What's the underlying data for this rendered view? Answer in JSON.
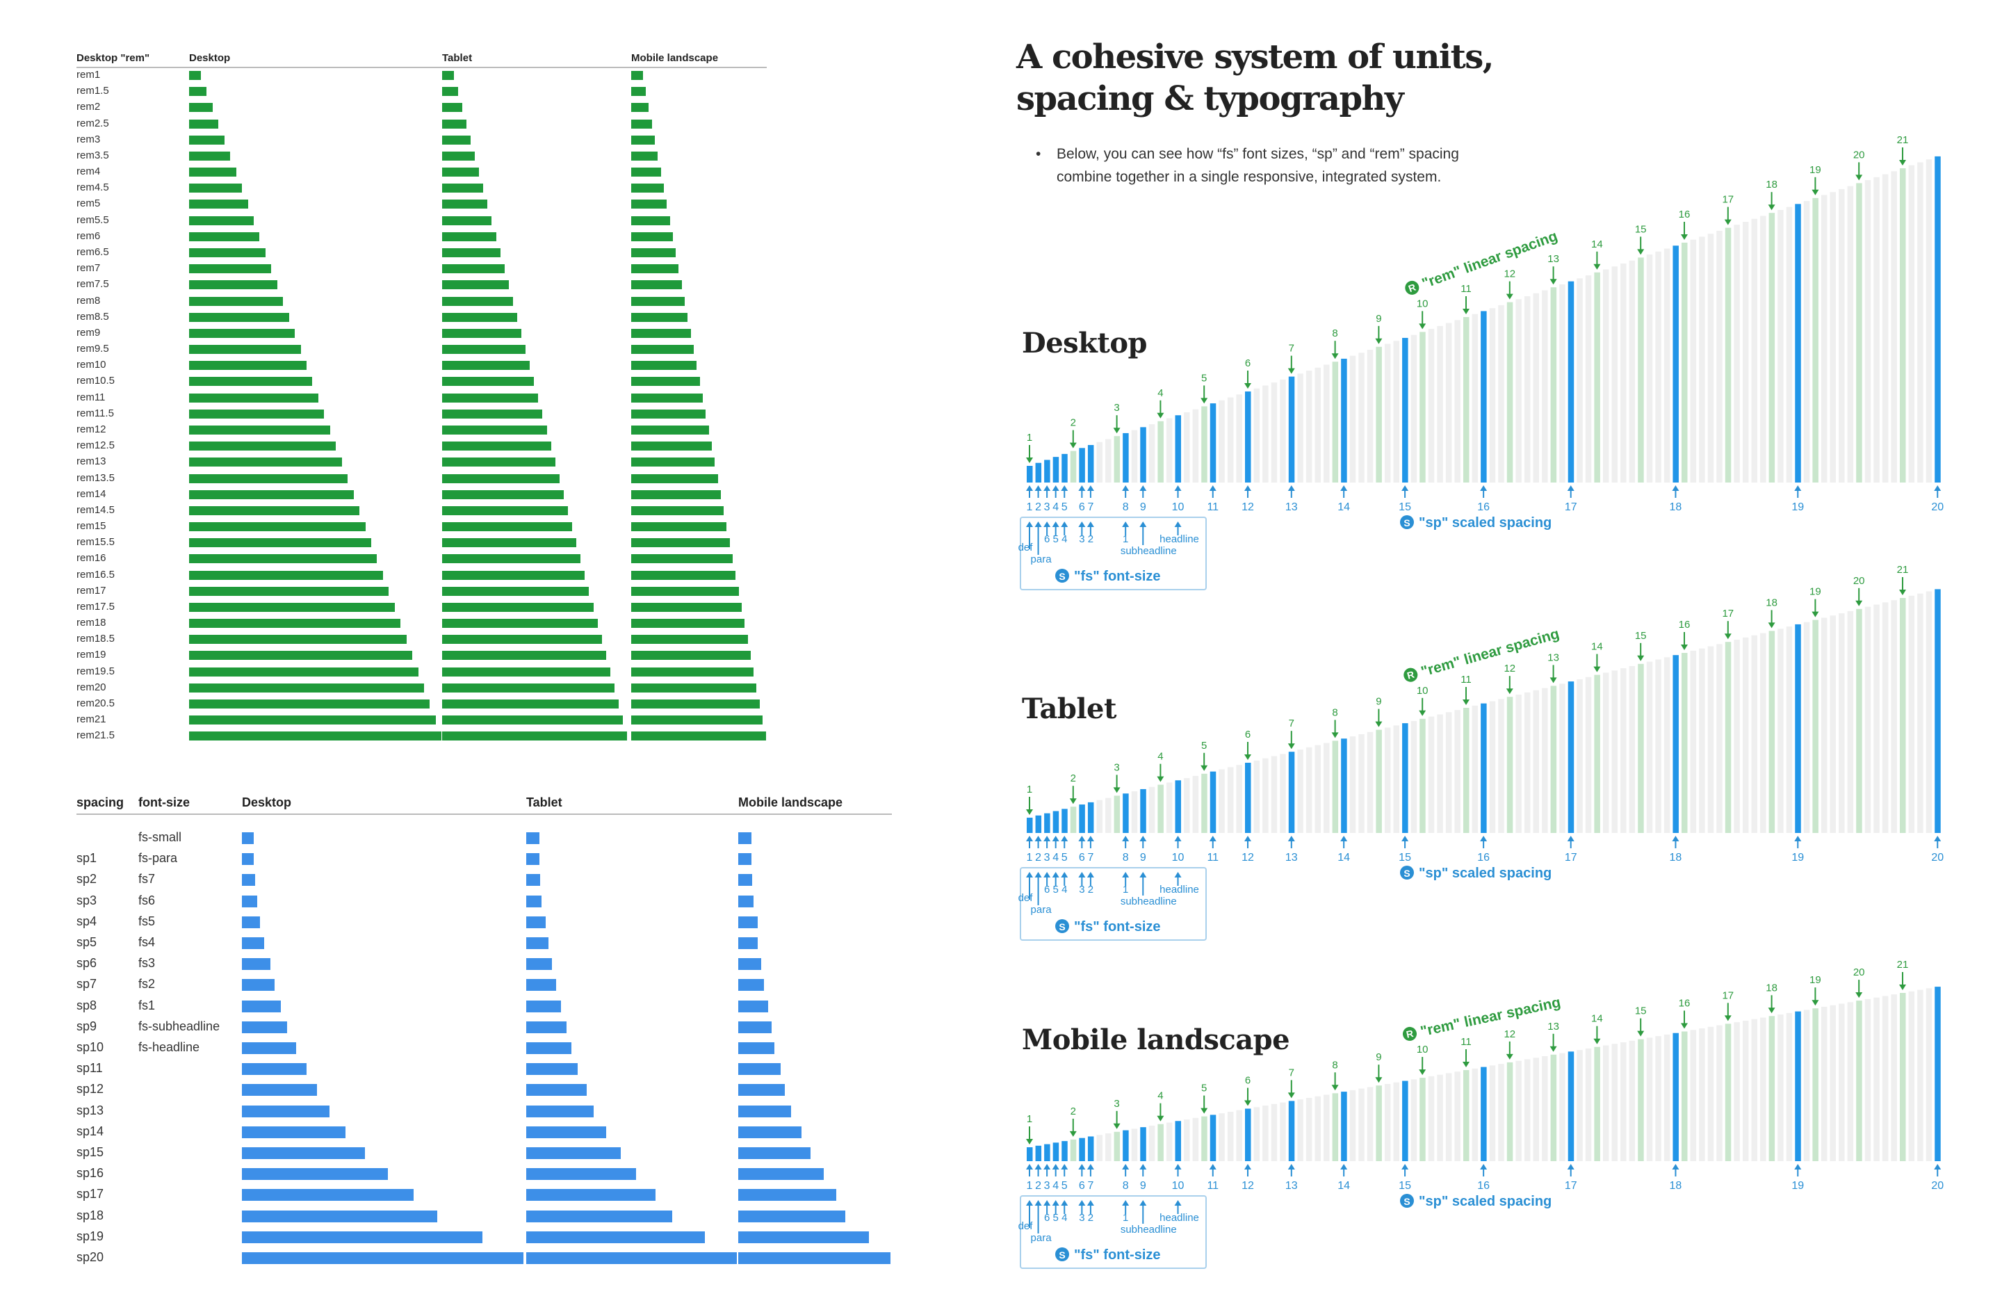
{
  "title_lines": [
    "A cohesive system of units,",
    "spacing & typography"
  ],
  "intro": "Below, you can see how “fs” font sizes, “sp” and “rem” spacing combine together in a single responsive, integrated system.",
  "intro_bullet": "•",
  "colors": {
    "rem_green": "#1f9a3a",
    "sp_blue": "#3d8fe8",
    "chart_blue": "#2196e8",
    "rem_light": "#c9e6cc",
    "grid_grey": "#efefef",
    "label_green": "#2e9b3f",
    "label_blue": "#2a8fd4"
  },
  "rem_table": {
    "headers": [
      "Desktop \"rem\"",
      "Desktop",
      "Tablet",
      "Mobile landscape"
    ],
    "labels": [
      "rem1",
      "rem1.5",
      "rem2",
      "rem2.5",
      "rem3",
      "rem3.5",
      "rem4",
      "rem4.5",
      "rem5",
      "rem5.5",
      "rem6",
      "rem6.5",
      "rem7",
      "rem7.5",
      "rem8",
      "rem8.5",
      "rem9",
      "rem9.5",
      "rem10",
      "rem10.5",
      "rem11",
      "rem11.5",
      "rem12",
      "rem12.5",
      "rem13",
      "rem13.5",
      "rem14",
      "rem14.5",
      "rem15",
      "rem15.5",
      "rem16",
      "rem16.5",
      "rem17",
      "rem17.5",
      "rem18",
      "rem18.5",
      "rem19",
      "rem19.5",
      "rem20",
      "rem20.5",
      "rem21",
      "rem21.5"
    ],
    "desktop": [
      1,
      1.5,
      2,
      2.5,
      3,
      3.5,
      4,
      4.5,
      5,
      5.5,
      6,
      6.5,
      7,
      7.5,
      8,
      8.5,
      9,
      9.5,
      10,
      10.5,
      11,
      11.5,
      12,
      12.5,
      13,
      13.5,
      14,
      14.5,
      15,
      15.5,
      16,
      16.5,
      17,
      17.5,
      18,
      18.5,
      19,
      19.5,
      20,
      20.5,
      21,
      21.5
    ],
    "tablet": [
      0.99,
      1.35,
      1.71,
      2.07,
      2.43,
      2.79,
      3.15,
      3.51,
      3.87,
      4.23,
      4.59,
      4.95,
      5.31,
      5.67,
      6.03,
      6.39,
      6.75,
      7.11,
      7.47,
      7.83,
      8.19,
      8.55,
      8.91,
      9.27,
      9.63,
      9.99,
      10.35,
      10.71,
      11.07,
      11.43,
      11.79,
      12.15,
      12.51,
      12.87,
      13.23,
      13.59,
      13.95,
      14.31,
      14.67,
      15.03,
      15.39,
      15.75
    ],
    "mobile": [
      0.99,
      1.25,
      1.5,
      1.76,
      2.01,
      2.27,
      2.52,
      2.78,
      3.03,
      3.29,
      3.54,
      3.8,
      4.05,
      4.31,
      4.56,
      4.82,
      5.07,
      5.33,
      5.58,
      5.84,
      6.09,
      6.35,
      6.6,
      6.86,
      7.11,
      7.37,
      7.62,
      7.88,
      8.13,
      8.39,
      8.64,
      8.9,
      9.15,
      9.41,
      9.66,
      9.92,
      10.17,
      10.43,
      10.68,
      10.94,
      11.19,
      11.45
    ]
  },
  "sp_table": {
    "headers": [
      "spacing",
      "font-size",
      "Desktop",
      "Tablet",
      "Mobile landscape"
    ],
    "rows": [
      {
        "sp": "",
        "fs": "fs-small",
        "desktop": 9,
        "tablet": 10,
        "mobile": 10
      },
      {
        "sp": "sp1",
        "fs": "fs-para",
        "desktop": 9,
        "tablet": 10,
        "mobile": 10
      },
      {
        "sp": "sp2",
        "fs": "fs7",
        "desktop": 10,
        "tablet": 11,
        "mobile": 11
      },
      {
        "sp": "sp3",
        "fs": "fs6",
        "desktop": 12,
        "tablet": 12,
        "mobile": 12
      },
      {
        "sp": "sp4",
        "fs": "fs5",
        "desktop": 14,
        "tablet": 15,
        "mobile": 15
      },
      {
        "sp": "sp5",
        "fs": "fs4",
        "desktop": 17,
        "tablet": 17,
        "mobile": 15
      },
      {
        "sp": "sp6",
        "fs": "fs3",
        "desktop": 22,
        "tablet": 20,
        "mobile": 18
      },
      {
        "sp": "sp7",
        "fs": "fs2",
        "desktop": 25,
        "tablet": 23,
        "mobile": 20
      },
      {
        "sp": "sp8",
        "fs": "fs1",
        "desktop": 30,
        "tablet": 27,
        "mobile": 23
      },
      {
        "sp": "sp9",
        "fs": "fs-subheadline",
        "desktop": 35,
        "tablet": 31,
        "mobile": 26
      },
      {
        "sp": "sp10",
        "fs": "fs-headline",
        "desktop": 42,
        "tablet": 35,
        "mobile": 28
      },
      {
        "sp": "sp11",
        "fs": "",
        "desktop": 50,
        "tablet": 40,
        "mobile": 33
      },
      {
        "sp": "sp12",
        "fs": "",
        "desktop": 58,
        "tablet": 47,
        "mobile": 36
      },
      {
        "sp": "sp13",
        "fs": "",
        "desktop": 68,
        "tablet": 52,
        "mobile": 41
      },
      {
        "sp": "sp14",
        "fs": "",
        "desktop": 80,
        "tablet": 62,
        "mobile": 49
      },
      {
        "sp": "sp15",
        "fs": "",
        "desktop": 95,
        "tablet": 73,
        "mobile": 56
      },
      {
        "sp": "sp16",
        "fs": "",
        "desktop": 113,
        "tablet": 85,
        "mobile": 66
      },
      {
        "sp": "sp17",
        "fs": "",
        "desktop": 133,
        "tablet": 100,
        "mobile": 76
      },
      {
        "sp": "sp18",
        "fs": "",
        "desktop": 151,
        "tablet": 113,
        "mobile": 83
      },
      {
        "sp": "sp19",
        "fs": "",
        "desktop": 186,
        "tablet": 138,
        "mobile": 101
      },
      {
        "sp": "sp20",
        "fs": "",
        "desktop": 218,
        "tablet": 163,
        "mobile": 118
      }
    ]
  },
  "chart_data": [
    {
      "type": "bar",
      "title": "Desktop",
      "rem_values": [
        1,
        2,
        3,
        4,
        5,
        6,
        7,
        8,
        9,
        10,
        11,
        12,
        13,
        14,
        15,
        16,
        17,
        18,
        19,
        20,
        21
      ],
      "rem_labels": [
        "1",
        "2",
        "3",
        "4",
        "5",
        "6",
        "7",
        "8",
        "9",
        "10",
        "11",
        "12",
        "13",
        "14",
        "15",
        "16",
        "17",
        "18",
        "19",
        "20",
        "21"
      ],
      "sp_values": [
        1,
        1.2,
        1.4,
        1.6,
        1.8,
        2.2,
        2.4,
        3.2,
        3.6,
        4.4,
        5.2,
        6.0,
        7.0,
        8.2,
        9.6,
        11.4,
        13.4,
        15.8,
        18.6,
        21.8
      ],
      "sp_labels": [
        "1",
        "2",
        "3",
        "4",
        "5",
        "6",
        "7",
        "8",
        "9",
        "10",
        "11",
        "12",
        "13",
        "14",
        "15",
        "16",
        "17",
        "18",
        "19",
        "20"
      ],
      "fs_labels": [
        "def",
        "para",
        "6",
        "5",
        "4",
        "3",
        "2",
        "1",
        "subheadline",
        "headline"
      ],
      "rem_badge": "R",
      "rem_annotation": "\"rem\" linear spacing",
      "sp_badge": "S",
      "sp_annotation": "\"sp\" scaled spacing",
      "fs_badge": "S",
      "fs_annotation": "\"fs\" font-size"
    },
    {
      "type": "bar",
      "title": "Tablet",
      "rem_values": [
        1,
        2,
        3,
        4,
        5,
        6,
        7,
        8,
        9,
        10,
        11,
        12,
        13,
        14,
        15,
        16,
        17,
        18,
        19,
        20,
        21
      ],
      "rem_labels": [
        "1",
        "2",
        "3",
        "4",
        "5",
        "6",
        "7",
        "8",
        "9",
        "10",
        "11",
        "12",
        "13",
        "14",
        "15",
        "16",
        "17",
        "18",
        "19",
        "20",
        "21"
      ],
      "sp_values": [
        1,
        1.2,
        1.4,
        1.6,
        1.8,
        2.2,
        2.4,
        3.2,
        3.6,
        4.4,
        5.2,
        6.0,
        7.0,
        8.2,
        9.6,
        11.4,
        13.4,
        15.8,
        18.6,
        21.8
      ],
      "sp_labels": [
        "1",
        "2",
        "3",
        "4",
        "5",
        "6",
        "7",
        "8",
        "9",
        "10",
        "11",
        "12",
        "13",
        "14",
        "15",
        "16",
        "17",
        "18",
        "19",
        "20"
      ],
      "fs_labels": [
        "def",
        "para",
        "6",
        "5",
        "4",
        "3",
        "2",
        "1",
        "subheadline",
        "headline"
      ],
      "rem_badge": "R",
      "rem_annotation": "\"rem\" linear spacing",
      "sp_badge": "S",
      "sp_annotation": "\"sp\" scaled spacing",
      "fs_badge": "S",
      "fs_annotation": "\"fs\" font-size"
    },
    {
      "type": "bar",
      "title": "Mobile landscape",
      "rem_values": [
        1,
        2,
        3,
        4,
        5,
        6,
        7,
        8,
        9,
        10,
        11,
        12,
        13,
        14,
        15,
        16,
        17,
        18,
        19,
        20,
        21
      ],
      "rem_labels": [
        "1",
        "2",
        "3",
        "4",
        "5",
        "6",
        "7",
        "8",
        "9",
        "10",
        "11",
        "12",
        "13",
        "14",
        "15",
        "16",
        "17",
        "18",
        "19",
        "20",
        "21"
      ],
      "sp_values": [
        1,
        1.2,
        1.4,
        1.6,
        1.8,
        2.2,
        2.4,
        3.2,
        3.6,
        4.4,
        5.2,
        6.0,
        7.0,
        8.2,
        9.6,
        11.4,
        13.4,
        15.8,
        18.6,
        21.8
      ],
      "sp_labels": [
        "1",
        "2",
        "3",
        "4",
        "5",
        "6",
        "7",
        "8",
        "9",
        "10",
        "11",
        "12",
        "13",
        "14",
        "15",
        "16",
        "17",
        "18",
        "19",
        "20"
      ],
      "fs_labels": [
        "def",
        "para",
        "6",
        "5",
        "4",
        "3",
        "2",
        "1",
        "subheadline",
        "headline"
      ],
      "rem_badge": "R",
      "rem_annotation": "\"rem\" linear spacing",
      "sp_badge": "S",
      "sp_annotation": "\"sp\" scaled spacing",
      "fs_badge": "S",
      "fs_annotation": "\"fs\" font-size"
    }
  ]
}
